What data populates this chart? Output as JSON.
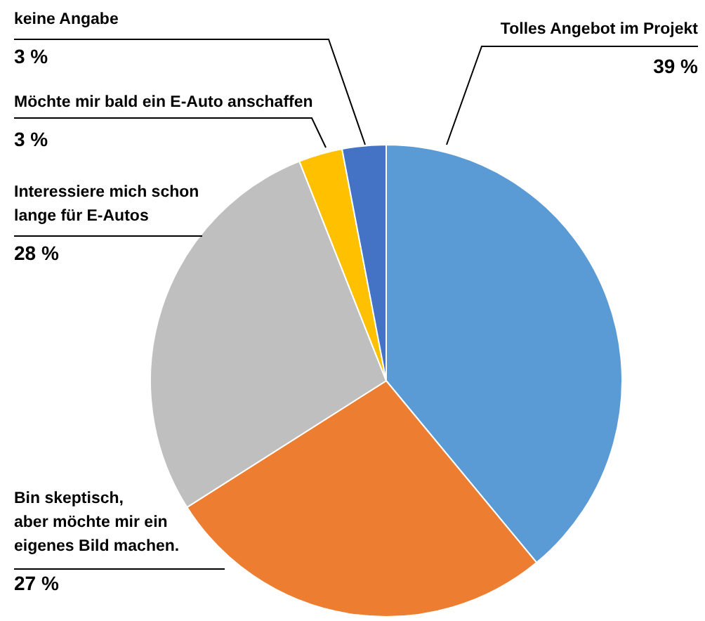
{
  "chart_data": {
    "type": "pie",
    "categories": [
      "Tolles Angebot im Projekt",
      "Bin skeptisch,\naber möchte mir ein\neigenes Bild machen.",
      "Interessiere mich schon\nlange für E-Autos",
      "Möchte mir bald ein E-Auto anschaffen",
      "keine Angabe"
    ],
    "values": [
      39,
      27,
      28,
      3,
      3
    ],
    "colors": [
      "#5b9bd5",
      "#ed7d31",
      "#bfbfbf",
      "#ffc000",
      "#4472c4"
    ],
    "value_labels": [
      "39 %",
      "27 %",
      "28 %",
      "3 %",
      "3 %"
    ]
  }
}
